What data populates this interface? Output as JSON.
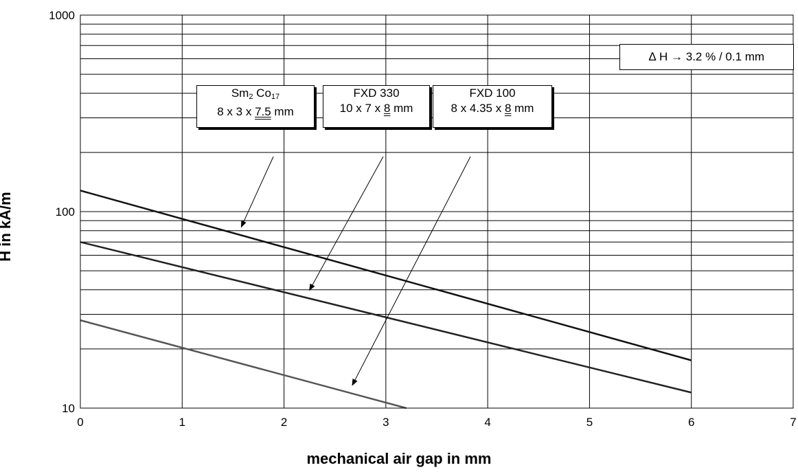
{
  "chart_data": {
    "type": "line",
    "xlabel": "mechanical air gap in mm",
    "ylabel": "H in kA/m",
    "xlim": [
      0,
      7
    ],
    "ylim": [
      10,
      1000
    ],
    "yscale": "log",
    "grid": true,
    "x_ticks": [
      "0",
      "1",
      "2",
      "3",
      "4",
      "5",
      "6",
      "7"
    ],
    "y_ticks": [
      "10",
      "100",
      "1000"
    ],
    "annotation": "∆ H → 3.2 % / 0.1 mm",
    "series": [
      {
        "label_line1": "Sm",
        "label_sub1": "2",
        "label_mid": " Co",
        "label_sub2": "17",
        "label_line2_prefix": "8 x 3 x ",
        "label_line2_underlined": "7.5",
        "label_line2_suffix": " mm",
        "x": [
          0,
          6
        ],
        "y": [
          128,
          17.5
        ],
        "color": "#111111"
      },
      {
        "label_line1": "FXD 330",
        "label_line2_prefix": "10 x 7 x ",
        "label_line2_underlined": "8",
        "label_line2_suffix": " mm",
        "x": [
          0,
          6
        ],
        "y": [
          70,
          12
        ],
        "color": "#222222"
      },
      {
        "label_line1": "FXD 100",
        "label_line2_prefix": "8 x 4.35 x ",
        "label_line2_underlined": "8",
        "label_line2_suffix": " mm",
        "x": [
          0,
          3.2
        ],
        "y": [
          28,
          10
        ],
        "color": "#555555"
      }
    ]
  }
}
